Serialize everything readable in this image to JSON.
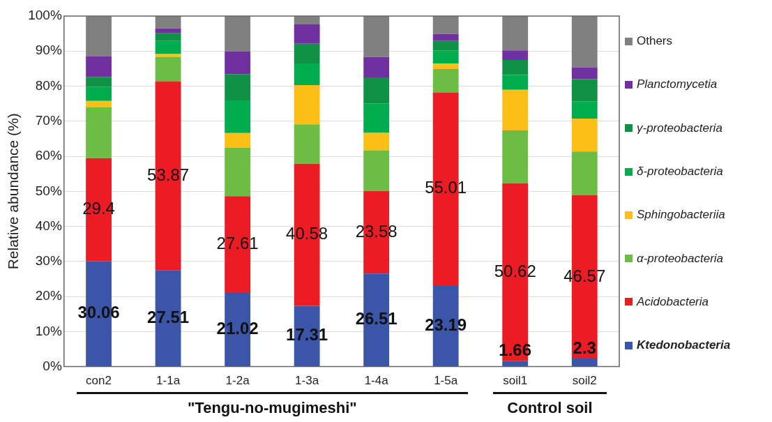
{
  "chart_data": {
    "type": "bar",
    "stacked": true,
    "ylabel": "Relative abundance (%)",
    "categories": [
      "con2",
      "1-1a",
      "1-2a",
      "1-3a",
      "1-4a",
      "1-5a",
      "soil1",
      "soil2"
    ],
    "ylim": [
      0,
      100
    ],
    "yticks": [
      {
        "value": 0,
        "label": "0%"
      },
      {
        "value": 10,
        "label": "10%"
      },
      {
        "value": 20,
        "label": "20%"
      },
      {
        "value": 30,
        "label": "30%"
      },
      {
        "value": 40,
        "label": "40%"
      },
      {
        "value": 50,
        "label": "50%"
      },
      {
        "value": 60,
        "label": "60%"
      },
      {
        "value": 70,
        "label": "70%"
      },
      {
        "value": 80,
        "label": "80%"
      },
      {
        "value": 90,
        "label": "90%"
      },
      {
        "value": 100,
        "label": "100%"
      }
    ],
    "grid": "y",
    "legend": "right",
    "series": [
      {
        "name": "Ktedonobacteria",
        "color": "#3b55a8",
        "values": [
          30.06,
          27.51,
          21.02,
          17.31,
          26.51,
          23.19,
          1.66,
          2.3
        ],
        "value_labels": [
          "30.06",
          "27.51",
          "21.02",
          "17.31",
          "26.51",
          "23.19",
          "1.66",
          "2.3"
        ]
      },
      {
        "name": "Acidobacteria",
        "color": "#ec1c24",
        "values": [
          29.4,
          53.87,
          27.61,
          40.58,
          23.58,
          55.01,
          50.62,
          46.57
        ],
        "value_labels": [
          "29.4",
          "53.87",
          "27.61",
          "40.58",
          "23.58",
          "55.01",
          "50.62",
          "46.57"
        ]
      },
      {
        "name": "α-proteobacteria",
        "color": "#6dbd45",
        "values": [
          14.5,
          7.0,
          13.8,
          11.2,
          11.6,
          6.7,
          15.1,
          12.5
        ]
      },
      {
        "name": "Sphingobacteriia",
        "color": "#fbbf16",
        "values": [
          1.8,
          0.8,
          4.2,
          11.2,
          5.0,
          1.5,
          11.6,
          9.4
        ]
      },
      {
        "name": "δ-proteobacteria",
        "color": "#00ad4e",
        "values": [
          4.0,
          3.7,
          9.3,
          6.2,
          8.4,
          3.8,
          4.2,
          4.9
        ]
      },
      {
        "name": "γ-proteobacteria",
        "color": "#0f9245",
        "values": [
          2.9,
          2.2,
          7.5,
          5.6,
          7.4,
          2.7,
          4.3,
          6.3
        ]
      },
      {
        "name": "Planctomycetia",
        "color": "#7030a0",
        "values": [
          5.9,
          1.4,
          6.5,
          5.5,
          5.8,
          2.0,
          2.7,
          3.4
        ]
      },
      {
        "name": "Others",
        "color": "#808080",
        "values": [
          11.4,
          3.5,
          10.1,
          2.4,
          11.7,
          5.1,
          9.8,
          14.6
        ]
      }
    ],
    "annotations": [
      "\"Tengu-no-mugimeshi\"",
      "Control soil"
    ]
  }
}
